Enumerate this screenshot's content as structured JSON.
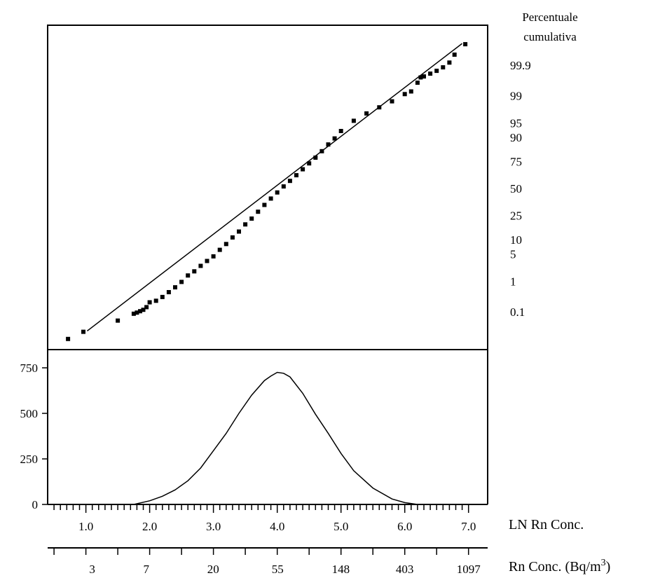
{
  "chart_data": [
    {
      "type": "scatter",
      "panel": "normal probability plot",
      "right_axis_title_line1": "Percentuale",
      "right_axis_title_line2": "cumulativa",
      "right_axis_ticks": [
        "99.9",
        "99",
        "95",
        "90",
        "75",
        "50",
        "25",
        "10",
        "5",
        "1",
        "0.1"
      ],
      "right_axis_percentiles": [
        99.9,
        99,
        95,
        90,
        75,
        50,
        25,
        10,
        5,
        1,
        0.1
      ],
      "xlim": [
        0.4,
        7.3
      ],
      "reference_line": [
        [
          1.02,
          0.0178
        ],
        [
          6.9,
          99.986
        ]
      ],
      "series": [
        {
          "points": [
            [
              0.72,
              0.0081
            ],
            [
              0.96,
              0.0164
            ],
            [
              1.5,
              0.0464
            ],
            [
              1.75,
              0.0847
            ],
            [
              1.8,
              0.093
            ],
            [
              1.85,
              0.105
            ],
            [
              1.9,
              0.118
            ],
            [
              1.95,
              0.147
            ],
            [
              2.0,
              0.216
            ],
            [
              2.1,
              0.244
            ],
            [
              2.2,
              0.326
            ],
            [
              2.3,
              0.469
            ],
            [
              2.4,
              0.662
            ],
            [
              2.5,
              0.96
            ],
            [
              2.6,
              1.46
            ],
            [
              2.7,
              1.89
            ],
            [
              2.8,
              2.62
            ],
            [
              2.9,
              3.46
            ],
            [
              3.0,
              4.45
            ],
            [
              3.1,
              6.2
            ],
            [
              3.2,
              8.2
            ],
            [
              3.3,
              11.0
            ],
            [
              3.4,
              14.0
            ],
            [
              3.5,
              18.4
            ],
            [
              3.6,
              22.5
            ],
            [
              3.7,
              28.0
            ],
            [
              3.8,
              34.0
            ],
            [
              3.9,
              40.0
            ],
            [
              4.0,
              46.0
            ],
            [
              4.1,
              52.0
            ],
            [
              4.2,
              57.5
            ],
            [
              4.3,
              63.0
            ],
            [
              4.4,
              68.5
            ],
            [
              4.5,
              73.5
            ],
            [
              4.6,
              78.0
            ],
            [
              4.7,
              82.5
            ],
            [
              4.8,
              86.5
            ],
            [
              4.9,
              89.5
            ],
            [
              5.0,
              92.5
            ],
            [
              5.2,
              95.5
            ],
            [
              5.4,
              97.0
            ],
            [
              5.6,
              97.9
            ],
            [
              5.8,
              98.55
            ],
            [
              6.0,
              99.1
            ],
            [
              6.1,
              99.25
            ],
            [
              6.2,
              99.6
            ],
            [
              6.25,
              99.73
            ],
            [
              6.3,
              99.75
            ],
            [
              6.4,
              99.8
            ],
            [
              6.5,
              99.84
            ],
            [
              6.6,
              99.88
            ],
            [
              6.7,
              99.92
            ],
            [
              6.78,
              99.96
            ],
            [
              6.95,
              99.985
            ]
          ]
        }
      ]
    },
    {
      "type": "area",
      "panel": "frequency distribution",
      "ylim": [
        0,
        850
      ],
      "yticks": [
        "0",
        "250",
        "500",
        "750"
      ],
      "xlim": [
        0.4,
        7.3
      ],
      "x_axis_label": "LN Rn Conc.",
      "x_ticks": [
        "1.0",
        "2.0",
        "3.0",
        "4.0",
        "5.0",
        "6.0",
        "7.0"
      ],
      "second_axis_label": "Rn Conc. (Bq/m",
      "second_axis_label_sup": "3",
      "second_axis_label_close": ")",
      "second_axis_ticks": [
        "3",
        "7",
        "20",
        "55",
        "148",
        "403",
        "1097"
      ],
      "series": [
        {
          "x": [
            1.75,
            2.0,
            2.2,
            2.4,
            2.6,
            2.8,
            3.0,
            3.2,
            3.4,
            3.6,
            3.8,
            3.9,
            4.0,
            4.1,
            4.2,
            4.4,
            4.6,
            4.8,
            5.0,
            5.2,
            5.5,
            5.8,
            6.0,
            6.2
          ],
          "y": [
            0,
            20,
            45,
            80,
            130,
            200,
            295,
            390,
            500,
            600,
            680,
            705,
            725,
            720,
            700,
            610,
            495,
            390,
            280,
            185,
            90,
            30,
            10,
            0
          ]
        }
      ]
    }
  ]
}
